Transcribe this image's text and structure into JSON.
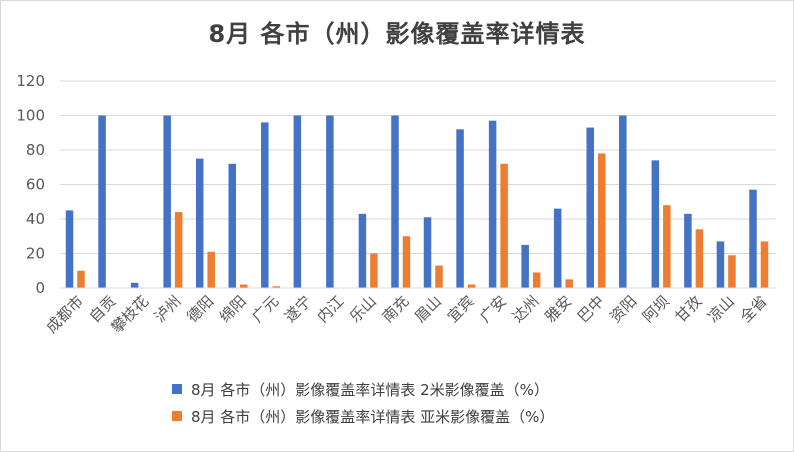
{
  "chart_data": {
    "type": "bar",
    "title": "8月 各市（州）影像覆盖率详情表",
    "xlabel": "",
    "ylabel": "",
    "ylim": [
      0,
      120
    ],
    "yticks": [
      0,
      20,
      40,
      60,
      80,
      100,
      120
    ],
    "grid": true,
    "legend_position": "bottom",
    "categories": [
      "成都市",
      "自贡",
      "攀枝花",
      "泸州",
      "德阳",
      "绵阳",
      "广元",
      "遂宁",
      "内江",
      "乐山",
      "南充",
      "眉山",
      "宜宾",
      "广安",
      "达州",
      "雅安",
      "巴中",
      "资阳",
      "阿坝",
      "甘孜",
      "凉山",
      "全省"
    ],
    "series": [
      {
        "name": "8月 各市（州）影像覆盖率详情表 2米影像覆盖（%）",
        "color": "#4472C4",
        "values": [
          45,
          100,
          3,
          100,
          75,
          72,
          96,
          100,
          100,
          43,
          100,
          41,
          92,
          97,
          25,
          46,
          93,
          100,
          74,
          43,
          27,
          57
        ]
      },
      {
        "name": "8月 各市（州）影像覆盖率详情表 亚米影像覆盖（%）",
        "color": "#ED7D31",
        "values": [
          10,
          0,
          0,
          44,
          21,
          2,
          1,
          0,
          0,
          20,
          30,
          13,
          2,
          72,
          9,
          5,
          78,
          0,
          48,
          34,
          19,
          27
        ]
      }
    ]
  }
}
